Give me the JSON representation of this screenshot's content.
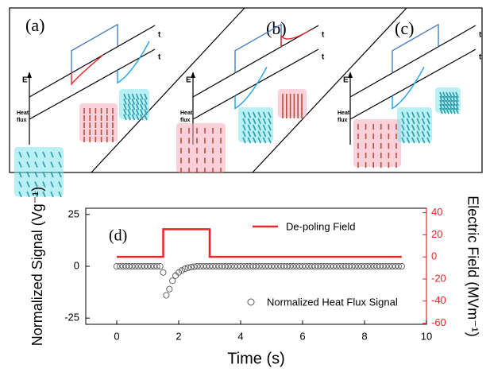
{
  "schematic": {
    "panels": [
      {
        "label": "(a)",
        "e_label": "E",
        "heat_label": [
          "Heat",
          "flux"
        ],
        "t_labels": [
          "t",
          "t"
        ]
      },
      {
        "label": "(b)",
        "e_label": "E",
        "heat_label": [
          "Heat",
          "flux"
        ],
        "t_labels": [
          "t",
          "t"
        ]
      },
      {
        "label": "(c)",
        "e_label": "E",
        "heat_label": [
          "Heat",
          "flux"
        ],
        "t_labels": [
          "t",
          "t"
        ]
      }
    ]
  },
  "chart_data": {
    "type": "line",
    "annotation": "(d)",
    "x_label": "Time (s)",
    "y_label": "Normalized Signal (Vg⁻¹)",
    "y2_label": "Electric Field (MVm⁻¹)",
    "xlim": [
      -1,
      10
    ],
    "xticks": [
      0,
      2,
      4,
      6,
      8,
      10
    ],
    "ylim": [
      -28,
      28
    ],
    "yticks": [
      -25,
      0,
      25
    ],
    "y2lim": [
      -61,
      44
    ],
    "y2ticks": [
      -60,
      -40,
      -20,
      0,
      20,
      40
    ],
    "y2color": "#e8262a",
    "series": [
      {
        "name": "De-poling Field",
        "type": "line",
        "axis": "y2",
        "color": "#e8262a",
        "x": [
          0,
          1.5,
          1.5,
          3,
          3,
          9.2
        ],
        "values": [
          0,
          0,
          25,
          25,
          0,
          0
        ]
      },
      {
        "name": "Normalized Heat Flux Signal",
        "type": "scatter",
        "axis": "y",
        "color": "#555555",
        "x": [
          0,
          0.1,
          0.2,
          0.3,
          0.4,
          0.5,
          0.6,
          0.7,
          0.8,
          0.9,
          1,
          1.1,
          1.2,
          1.3,
          1.4,
          1.5,
          1.6,
          1.7,
          1.8,
          1.9,
          2,
          2.1,
          2.2,
          2.3,
          2.4,
          2.5,
          2.6,
          2.7,
          2.8,
          2.9,
          3,
          3.1,
          3.2,
          3.3,
          3.4,
          3.5,
          3.6,
          3.7,
          3.8,
          3.9,
          4,
          4.1,
          4.2,
          4.3,
          4.4,
          4.5,
          4.6,
          4.7,
          4.8,
          4.9,
          5,
          5.1,
          5.2,
          5.3,
          5.4,
          5.5,
          5.6,
          5.7,
          5.8,
          5.9,
          6,
          6.1,
          6.2,
          6.3,
          6.4,
          6.5,
          6.6,
          6.7,
          6.8,
          6.9,
          7,
          7.1,
          7.2,
          7.3,
          7.4,
          7.5,
          7.6,
          7.7,
          7.8,
          7.9,
          8,
          8.1,
          8.2,
          8.3,
          8.4,
          8.5,
          8.6,
          8.7,
          8.8,
          8.9,
          9,
          9.1,
          9.2
        ],
        "values": [
          0,
          0,
          0,
          0,
          0,
          0,
          0,
          0,
          0,
          0,
          0,
          0,
          0,
          0,
          0,
          -3,
          -14,
          -11,
          -7,
          -4.5,
          -3,
          -2,
          -1.2,
          -0.7,
          -0.4,
          -0.2,
          0,
          0,
          0,
          0,
          0,
          0,
          0,
          0,
          0,
          0,
          0,
          0,
          0,
          0,
          0,
          0,
          0,
          0,
          0,
          0,
          0,
          0,
          0,
          0,
          0,
          0,
          0,
          0,
          0,
          0,
          0,
          0,
          0,
          0,
          0,
          0,
          0,
          0,
          0,
          0,
          0,
          0,
          0,
          0,
          0,
          0,
          0,
          0,
          0,
          0,
          0,
          0,
          0,
          0,
          0,
          0,
          0,
          0,
          0,
          0,
          0,
          0,
          0,
          0,
          0,
          0,
          0
        ]
      }
    ],
    "legend": "top-right"
  }
}
